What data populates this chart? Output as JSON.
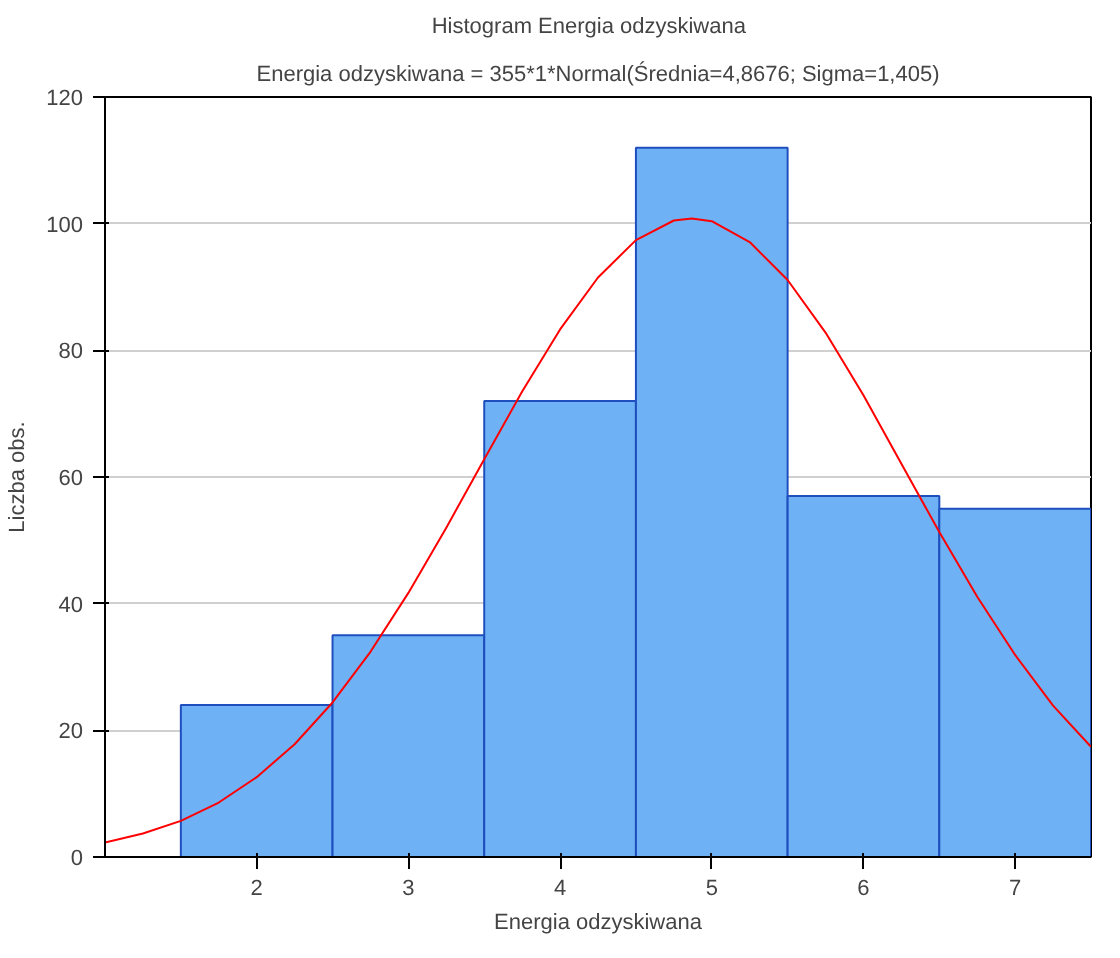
{
  "chart_data": {
    "type": "histogram",
    "title": "Histogram    Energia odzyskiwana",
    "subtitle": "Energia odzyskiwana = 355*1*Normal(Średnia=4,8676; Sigma=1,405)",
    "xlabel": "Energia odzyskiwana",
    "ylabel": "Liczba obs.",
    "xlim": [
      1,
      7.5
    ],
    "xticks": [
      2,
      3,
      4,
      5,
      6,
      7
    ],
    "ylim": [
      0,
      120
    ],
    "yticks": [
      0,
      20,
      40,
      60,
      80,
      100,
      120
    ],
    "grid": "y",
    "series": [
      {
        "color": "#6eb2f5",
        "bins": [
          1.5,
          2.5,
          3.5,
          4.5,
          5.5,
          6.5,
          7.5
        ],
        "values": [
          24,
          35,
          72,
          112,
          57,
          55
        ]
      },
      {
        "type": "line",
        "color": "#ff0000",
        "x": [
          1,
          1.25,
          1.5,
          1.75,
          2,
          2.25,
          2.5,
          2.75,
          3,
          3.25,
          3.5,
          3.75,
          4,
          4.25,
          4.5,
          4.75,
          4.8676,
          5,
          5.25,
          5.5,
          5.75,
          6,
          6.25,
          6.5,
          6.75,
          7,
          7.25,
          7.5
        ],
        "values": [
          2.3,
          3.7,
          5.7,
          8.6,
          12.6,
          17.8,
          24.4,
          32.4,
          41.7,
          52.0,
          62.8,
          73.5,
          83.3,
          91.5,
          97.4,
          100.5,
          100.8,
          100.4,
          97.1,
          91.1,
          82.8,
          72.9,
          62.1,
          51.3,
          41.1,
          31.9,
          23.9,
          17.4
        ]
      }
    ]
  }
}
